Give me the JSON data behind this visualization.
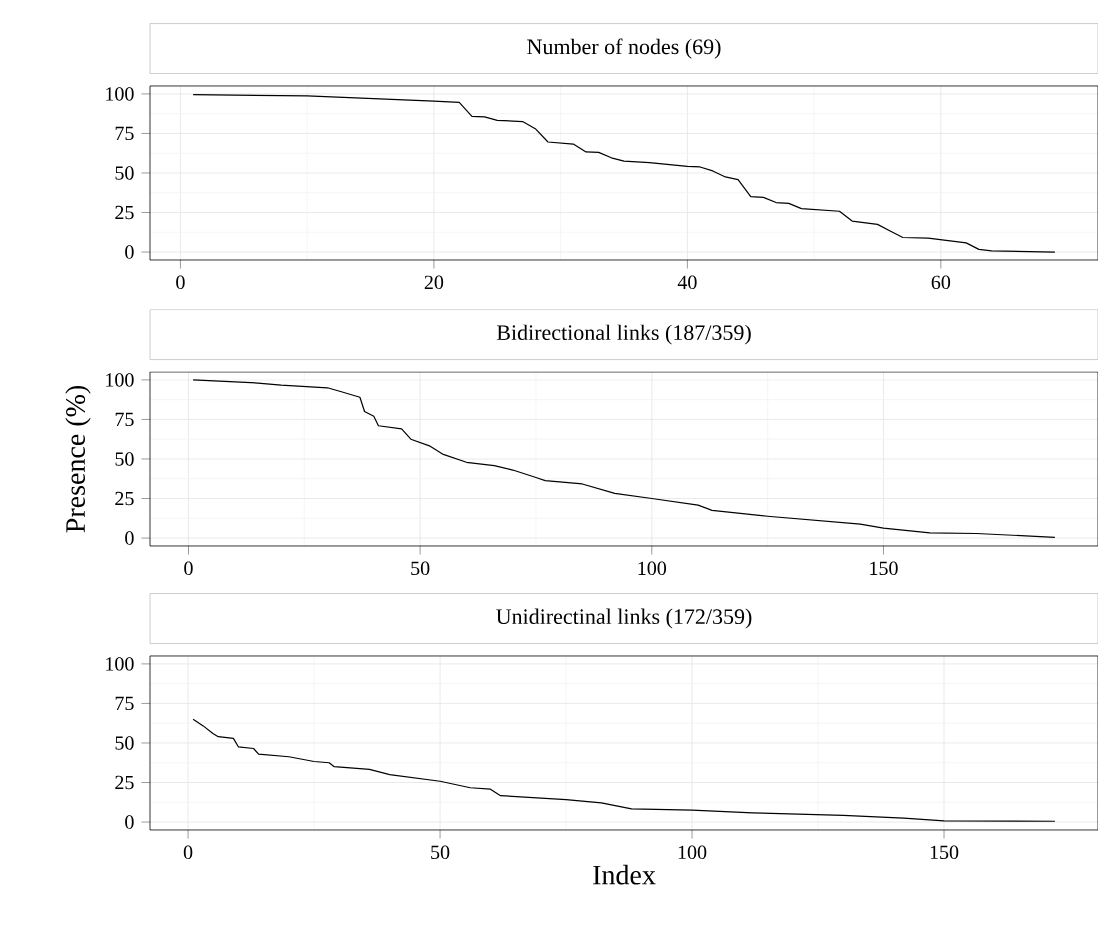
{
  "chart_data": [
    {
      "type": "line",
      "title": "Number of nodes (69)",
      "xlim": [
        -2.4,
        72.4
      ],
      "ylim": [
        -5,
        105
      ],
      "xticks": [
        0,
        20,
        40,
        60
      ],
      "yticks": [
        0,
        25,
        50,
        75,
        100
      ],
      "grid": true,
      "series": [
        {
          "color": "#000000",
          "x": [
            1,
            10,
            20,
            22,
            23,
            24,
            25,
            27,
            28,
            29,
            31,
            32,
            33,
            34,
            35,
            37,
            40,
            41,
            42,
            43,
            44,
            45,
            46,
            47,
            48,
            49,
            52,
            53,
            55,
            56,
            57,
            59,
            62,
            63,
            64,
            69
          ],
          "values": [
            99.5,
            98.7,
            95.4,
            94.6,
            85.8,
            85.5,
            83.3,
            82.5,
            78,
            69.6,
            68.3,
            63.3,
            63,
            59.6,
            57.5,
            56.5,
            54.2,
            53.8,
            51.3,
            47.5,
            45.8,
            35,
            34.6,
            31.3,
            30.8,
            27.5,
            25.8,
            19.6,
            17.5,
            13.3,
            9.2,
            8.8,
            5.8,
            1.7,
            0.8,
            0
          ]
        }
      ]
    },
    {
      "type": "line",
      "title": "Bidirectional links (187/359)",
      "ylabel": "Presence (%)",
      "xlim": [
        -8.3,
        196.3
      ],
      "ylim": [
        -5,
        105
      ],
      "xticks": [
        0,
        50,
        100,
        150
      ],
      "yticks": [
        0,
        25,
        50,
        75,
        100
      ],
      "grid": true,
      "series": [
        {
          "color": "#000000",
          "x": [
            1,
            15,
            20,
            30,
            33,
            37,
            38,
            40,
            41,
            46,
            48,
            52,
            55,
            60,
            66,
            70,
            75,
            77,
            85,
            92,
            100,
            110,
            113,
            125,
            135,
            145,
            150,
            160,
            170,
            187
          ],
          "values": [
            100,
            98,
            96.7,
            95,
            92.5,
            89,
            80,
            77,
            71,
            69,
            62.5,
            58.3,
            52.9,
            47.9,
            45.8,
            43,
            38.3,
            36.3,
            34.2,
            28.3,
            25,
            20.8,
            17.5,
            13.8,
            11.3,
            8.8,
            6.3,
            3.3,
            2.9,
            0.5
          ]
        }
      ]
    },
    {
      "type": "line",
      "title": "Unidirectinal links (172/359)",
      "xlabel": "Index",
      "xlim": [
        -7.55,
        180.55
      ],
      "ylim": [
        -5,
        105
      ],
      "xticks": [
        0,
        50,
        100,
        150
      ],
      "yticks": [
        0,
        25,
        50,
        75,
        100
      ],
      "grid": true,
      "series": [
        {
          "color": "#000000",
          "x": [
            1,
            3,
            5,
            6,
            9,
            10,
            13,
            14,
            20,
            25,
            28,
            29,
            36,
            40,
            50,
            56,
            60,
            62,
            75,
            82,
            88,
            100,
            112,
            130,
            142,
            150,
            172
          ],
          "values": [
            65,
            60.8,
            55.8,
            54,
            52.9,
            47.5,
            46.5,
            42.9,
            41.3,
            38.3,
            37.5,
            35,
            33.3,
            30,
            25.8,
            21.7,
            20.8,
            16.7,
            14.2,
            12.1,
            8.3,
            7.5,
            5.8,
            4.2,
            2.5,
            0.8,
            0.5
          ]
        }
      ]
    }
  ]
}
